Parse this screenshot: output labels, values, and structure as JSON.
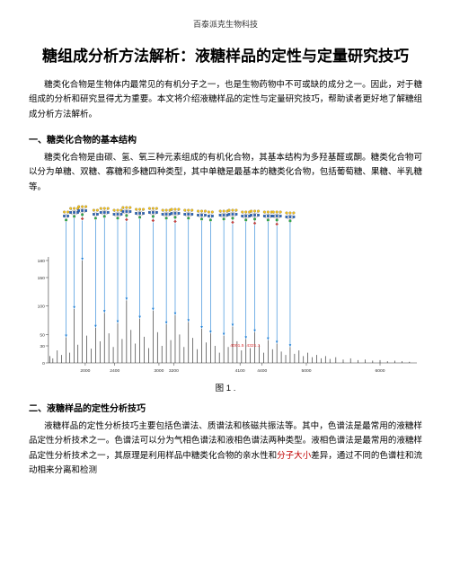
{
  "page": {
    "header": "百泰派克生物科技",
    "title": "糖组成分析方法解析：液糖样品的定性与定量研究技巧",
    "intro": "糖类化合物是生物体内最常见的有机分子之一，也是生物药物中不可或缺的成分之一。因此，对于糖组成的分析和研究显得尤为重要。本文将介绍液糖样品的定性与定量研究技巧，帮助读者更好地了解糖组成分析方法解析。",
    "section1_heading": "一、糖类化合物的基本结构",
    "section1_body": "糖类化合物是由碳、氢、氧三种元素组成的有机化合物，其基本结构为多羟基醛或酮。糖类化合物可以分为单糖、双糖、寡糖和多糖四种类型，其中单糖是最基本的糖类化合物，包括葡萄糖、果糖、半乳糖等。",
    "figure_caption": "图 1 .",
    "section2_heading": "二、液糖样品的定性分析技巧",
    "section2_body_pre": "液糖样品的定性分析技巧主要包括色谱法、质谱法和核磁共振法等。其中，色谱法是最常用的液糖样品定性分析技术之一。色谱法可以分为气相色谱法和液相色谱法两种类型。液相色谱法是最常用的液糖样品定性分析技术之一，其原理是利用样品中糖类化合物的亲水性和",
    "section2_body_highlight": "分子大小",
    "section2_body_post": "差异，通过不同的色谱柱和流动相来分离和检测"
  },
  "figure": {
    "background": "#ffffff",
    "spectrum_color": "#3a3a3a",
    "axis_color": "#333333",
    "arrow_color": "#1e7fd6",
    "red_label_color": "#dd3030",
    "green_label_color": "#2aa02a",
    "glycan_yellow": "#f5c21a",
    "glycan_blue": "#2666c4",
    "glycan_green": "#2bb04a",
    "glycan_red": "#d43a3a",
    "x_start": 1500,
    "x_end": 6500,
    "x_ticks": [
      2000,
      2400,
      3000,
      3200,
      4100,
      4400,
      5000,
      6000
    ],
    "y_ticks": [
      0,
      30,
      50,
      100,
      150,
      180
    ],
    "peaks": [
      {
        "x": 1520,
        "h": 12
      },
      {
        "x": 1560,
        "h": 8
      },
      {
        "x": 1620,
        "h": 22
      },
      {
        "x": 1680,
        "h": 14
      },
      {
        "x": 1740,
        "h": 45
      },
      {
        "x": 1790,
        "h": 18
      },
      {
        "x": 1850,
        "h": 95
      },
      {
        "x": 1900,
        "h": 32
      },
      {
        "x": 1960,
        "h": 180
      },
      {
        "x": 2020,
        "h": 48
      },
      {
        "x": 2080,
        "h": 25
      },
      {
        "x": 2140,
        "h": 62
      },
      {
        "x": 2200,
        "h": 38
      },
      {
        "x": 2260,
        "h": 88
      },
      {
        "x": 2320,
        "h": 52
      },
      {
        "x": 2380,
        "h": 28
      },
      {
        "x": 2440,
        "h": 70
      },
      {
        "x": 2500,
        "h": 42
      },
      {
        "x": 2560,
        "h": 110
      },
      {
        "x": 2620,
        "h": 58
      },
      {
        "x": 2680,
        "h": 34
      },
      {
        "x": 2740,
        "h": 78
      },
      {
        "x": 2800,
        "h": 46
      },
      {
        "x": 2860,
        "h": 26
      },
      {
        "x": 2920,
        "h": 92
      },
      {
        "x": 2980,
        "h": 54
      },
      {
        "x": 3040,
        "h": 30
      },
      {
        "x": 3100,
        "h": 68
      },
      {
        "x": 3160,
        "h": 40
      },
      {
        "x": 3220,
        "h": 84
      },
      {
        "x": 3280,
        "h": 50
      },
      {
        "x": 3340,
        "h": 28
      },
      {
        "x": 3400,
        "h": 72
      },
      {
        "x": 3460,
        "h": 44
      },
      {
        "x": 3520,
        "h": 24
      },
      {
        "x": 3580,
        "h": 60
      },
      {
        "x": 3640,
        "h": 36
      },
      {
        "x": 3700,
        "h": 52
      },
      {
        "x": 3760,
        "h": 30
      },
      {
        "x": 3820,
        "h": 18
      },
      {
        "x": 3880,
        "h": 48
      },
      {
        "x": 3940,
        "h": 28
      },
      {
        "x": 4000,
        "h": 64
      },
      {
        "x": 4060,
        "h": 38
      },
      {
        "x": 4120,
        "h": 22
      },
      {
        "x": 4180,
        "h": 42
      },
      {
        "x": 4240,
        "h": 26
      },
      {
        "x": 4300,
        "h": 54
      },
      {
        "x": 4360,
        "h": 32
      },
      {
        "x": 4420,
        "h": 18
      },
      {
        "x": 4480,
        "h": 40
      },
      {
        "x": 4540,
        "h": 24
      },
      {
        "x": 4600,
        "h": 34
      },
      {
        "x": 4660,
        "h": 20
      },
      {
        "x": 4720,
        "h": 14
      },
      {
        "x": 4780,
        "h": 28
      },
      {
        "x": 4840,
        "h": 16
      },
      {
        "x": 4900,
        "h": 22
      },
      {
        "x": 4960,
        "h": 12
      },
      {
        "x": 5020,
        "h": 18
      },
      {
        "x": 5080,
        "h": 10
      },
      {
        "x": 5140,
        "h": 14
      },
      {
        "x": 5200,
        "h": 8
      },
      {
        "x": 5260,
        "h": 12
      },
      {
        "x": 5320,
        "h": 7
      },
      {
        "x": 5400,
        "h": 10
      },
      {
        "x": 5500,
        "h": 6
      },
      {
        "x": 5600,
        "h": 8
      },
      {
        "x": 5700,
        "h": 5
      },
      {
        "x": 5800,
        "h": 6
      },
      {
        "x": 5900,
        "h": 4
      },
      {
        "x": 6000,
        "h": 5
      },
      {
        "x": 6100,
        "h": 3
      },
      {
        "x": 6200,
        "h": 4
      },
      {
        "x": 6300,
        "h": 3
      },
      {
        "x": 6400,
        "h": 2
      }
    ],
    "red_labels": [
      {
        "x": 4060,
        "text": "4001.5"
      },
      {
        "x": 4280,
        "text": "4321.1"
      }
    ],
    "glycan_structures": [
      {
        "x": 1740,
        "y_top": 8,
        "branches": 2,
        "rows": 3
      },
      {
        "x": 1850,
        "y_top": 4,
        "branches": 3,
        "rows": 3
      },
      {
        "x": 1960,
        "y_top": 2,
        "branches": 3,
        "rows": 4
      },
      {
        "x": 2140,
        "y_top": 6,
        "branches": 2,
        "rows": 3
      },
      {
        "x": 2260,
        "y_top": 4,
        "branches": 3,
        "rows": 3
      },
      {
        "x": 2440,
        "y_top": 6,
        "branches": 3,
        "rows": 3
      },
      {
        "x": 2560,
        "y_top": 3,
        "branches": 3,
        "rows": 4
      },
      {
        "x": 2740,
        "y_top": 5,
        "branches": 3,
        "rows": 3
      },
      {
        "x": 2920,
        "y_top": 4,
        "branches": 3,
        "rows": 4
      },
      {
        "x": 3100,
        "y_top": 6,
        "branches": 3,
        "rows": 3
      },
      {
        "x": 3220,
        "y_top": 5,
        "branches": 3,
        "rows": 4
      },
      {
        "x": 3400,
        "y_top": 6,
        "branches": 3,
        "rows": 3
      },
      {
        "x": 3580,
        "y_top": 7,
        "branches": 3,
        "rows": 3
      },
      {
        "x": 3700,
        "y_top": 8,
        "branches": 2,
        "rows": 3
      },
      {
        "x": 3880,
        "y_top": 7,
        "branches": 3,
        "rows": 3
      },
      {
        "x": 4000,
        "y_top": 6,
        "branches": 3,
        "rows": 4
      },
      {
        "x": 4180,
        "y_top": 8,
        "branches": 3,
        "rows": 3
      },
      {
        "x": 4300,
        "y_top": 7,
        "branches": 3,
        "rows": 4
      },
      {
        "x": 4480,
        "y_top": 8,
        "branches": 3,
        "rows": 3
      },
      {
        "x": 4600,
        "y_top": 8,
        "branches": 3,
        "rows": 4
      },
      {
        "x": 4780,
        "y_top": 9,
        "branches": 3,
        "rows": 3
      }
    ]
  }
}
